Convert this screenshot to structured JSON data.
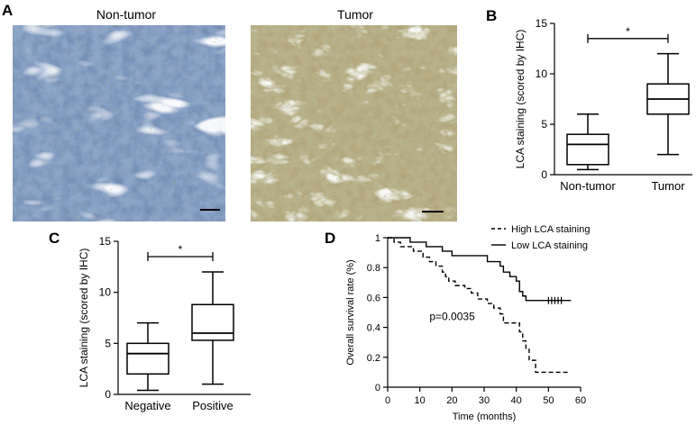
{
  "panels": {
    "a": {
      "label": "A",
      "left_caption": "Non-tumor",
      "right_caption": "Tumor"
    },
    "b": {
      "label": "B"
    },
    "c": {
      "label": "C"
    },
    "d": {
      "label": "D"
    }
  },
  "colors": {
    "nontumor_tissue": "#8da6c8",
    "nontumor_stroma": "#e9eef4",
    "tumor_tissue": "#b9b38c",
    "tumor_stroma": "#e7eadf",
    "brown_stain": "#7a4d22",
    "ink": "#000000"
  },
  "chart_data": [
    {
      "id": "b",
      "type": "box",
      "ylabel": "LCA staining (scored by IHC)",
      "ylim": [
        0,
        15
      ],
      "yticks": [
        0,
        5,
        10,
        15
      ],
      "categories": [
        "Non-tumor",
        "Tumor"
      ],
      "boxes": [
        {
          "min": 0.5,
          "q1": 1,
          "median": 3,
          "q3": 4,
          "max": 6
        },
        {
          "min": 2,
          "q1": 6,
          "median": 7.5,
          "q3": 9,
          "max": 12
        }
      ],
      "significance": "*"
    },
    {
      "id": "c",
      "type": "box",
      "ylabel": "LCA staining (scored by IHC)",
      "ylim": [
        0,
        15
      ],
      "yticks": [
        0,
        5,
        10,
        15
      ],
      "categories": [
        "Negative",
        "Positive"
      ],
      "boxes": [
        {
          "min": 0.4,
          "q1": 2,
          "median": 4,
          "q3": 5,
          "max": 7
        },
        {
          "min": 1,
          "q1": 5.3,
          "median": 6,
          "q3": 8.8,
          "max": 12
        }
      ],
      "significance": "*"
    },
    {
      "id": "d",
      "type": "line",
      "xlabel": "Time (months)",
      "ylabel": "Overall survival rate (%)",
      "xlim": [
        0,
        60
      ],
      "ylim": [
        0,
        1
      ],
      "xticks": [
        0,
        10,
        20,
        30,
        40,
        50,
        60
      ],
      "yticks": [
        0,
        0.2,
        0.4,
        0.6,
        0.8,
        1
      ],
      "annotation": "p=0.0035",
      "legend": "top-right",
      "series": [
        {
          "name": "High LCA staining",
          "style": "dashed",
          "steps": [
            [
              0,
              1
            ],
            [
              2,
              0.97
            ],
            [
              4,
              0.94
            ],
            [
              8,
              0.91
            ],
            [
              11,
              0.87
            ],
            [
              13,
              0.84
            ],
            [
              15,
              0.81
            ],
            [
              17,
              0.77
            ],
            [
              18,
              0.74
            ],
            [
              19,
              0.71
            ],
            [
              21,
              0.68
            ],
            [
              24,
              0.66
            ],
            [
              26,
              0.63
            ],
            [
              28,
              0.59
            ],
            [
              31,
              0.56
            ],
            [
              33,
              0.53
            ],
            [
              35,
              0.49
            ],
            [
              36,
              0.43
            ],
            [
              41,
              0.37
            ],
            [
              42,
              0.31
            ],
            [
              43,
              0.26
            ],
            [
              44,
              0.18
            ],
            [
              46,
              0.1
            ],
            [
              56,
              0.1
            ]
          ],
          "censored_x": []
        },
        {
          "name": "Low LCA staining",
          "style": "solid",
          "steps": [
            [
              0,
              1
            ],
            [
              7,
              0.97
            ],
            [
              12,
              0.94
            ],
            [
              17,
              0.91
            ],
            [
              20,
              0.88
            ],
            [
              31,
              0.84
            ],
            [
              35,
              0.81
            ],
            [
              36,
              0.77
            ],
            [
              38,
              0.74
            ],
            [
              40,
              0.71
            ],
            [
              41,
              0.64
            ],
            [
              42,
              0.61
            ],
            [
              43,
              0.58
            ],
            [
              57,
              0.58
            ]
          ],
          "censored_x": [
            50,
            51,
            52,
            53,
            54
          ]
        }
      ]
    }
  ]
}
